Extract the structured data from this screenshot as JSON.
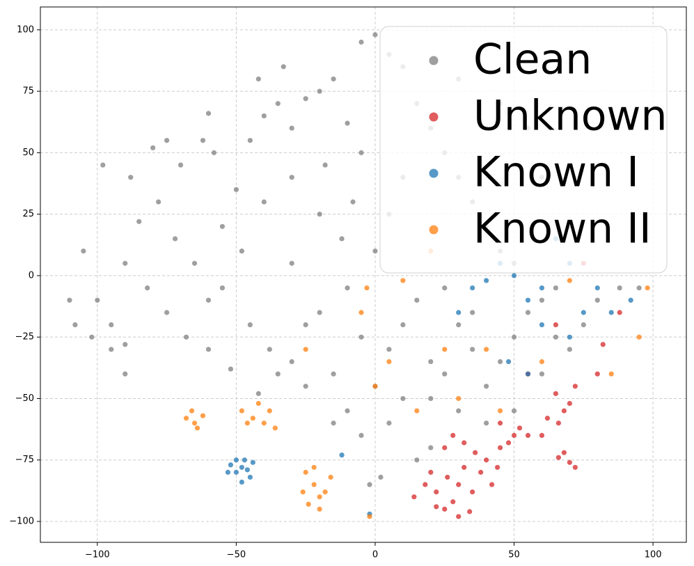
{
  "chart_data": {
    "type": "scatter",
    "xlim": [
      -120.5,
      112
    ],
    "ylim": [
      -108.5,
      109.3
    ],
    "xticks": [
      {
        "value": -100,
        "label": "−100"
      },
      {
        "value": -50,
        "label": "−50"
      },
      0,
      50,
      100
    ],
    "yticks": [
      {
        "value": -100,
        "label": "−100"
      },
      {
        "value": -75,
        "label": "−75"
      },
      {
        "value": -50,
        "label": "−50"
      },
      {
        "value": -25,
        "label": "−25"
      },
      0,
      25,
      50,
      75,
      100
    ],
    "grid": true,
    "legend": "upper right",
    "series": [
      {
        "name": "Clean",
        "color": "#7f7f7f",
        "x": [
          -105,
          -100,
          -95,
          -102,
          -90,
          -85,
          -88,
          -80,
          -75,
          -70,
          -78,
          -72,
          -65,
          -60,
          -68,
          -75,
          -82,
          -90,
          -55,
          -50,
          -45,
          -40,
          -35,
          -30,
          -25,
          -20,
          -15,
          -10,
          -5,
          -8,
          -12,
          -20,
          -30,
          -40,
          -48,
          -55,
          -45,
          -38,
          -30,
          -20,
          -10,
          -5,
          -15,
          -25,
          -35,
          -60,
          -52,
          -42,
          -10,
          -15,
          -5,
          0,
          5,
          10,
          15,
          20,
          25,
          30,
          35,
          40,
          45,
          50,
          55,
          60,
          65,
          70,
          75,
          80,
          88,
          95,
          60,
          50,
          40,
          30,
          20,
          10,
          5,
          -5,
          0,
          5,
          10,
          15,
          20,
          25,
          30,
          35,
          40,
          45,
          50,
          10,
          5,
          0,
          -2,
          2,
          15,
          20,
          -33,
          -60,
          -62,
          -90,
          -108,
          -110,
          -98,
          -95,
          30,
          45,
          55,
          60,
          70,
          65,
          25,
          35,
          -25,
          -30,
          -18,
          -58,
          -42
        ],
        "y": [
          10,
          -10,
          -20,
          -25,
          5,
          22,
          40,
          52,
          55,
          45,
          30,
          15,
          5,
          -10,
          -25,
          -15,
          -5,
          -28,
          20,
          35,
          55,
          65,
          70,
          60,
          72,
          75,
          80,
          62,
          50,
          30,
          15,
          25,
          40,
          30,
          10,
          -5,
          -20,
          -30,
          -35,
          -15,
          -5,
          -25,
          -40,
          -45,
          -40,
          -30,
          -38,
          -48,
          -55,
          -60,
          -65,
          -45,
          -30,
          -20,
          -10,
          -35,
          -40,
          -20,
          -30,
          -45,
          -35,
          -25,
          -15,
          -10,
          -5,
          -30,
          -20,
          -10,
          -5,
          -5,
          -40,
          -55,
          -60,
          -55,
          -50,
          -50,
          -60,
          95,
          98,
          90,
          85,
          70,
          60,
          50,
          40,
          30,
          20,
          10,
          5,
          40,
          25,
          10,
          -85,
          -82,
          -75,
          -70,
          85,
          66,
          55,
          -40,
          -20,
          -10,
          45,
          -30,
          80,
          70,
          60,
          40,
          20,
          -25,
          -5,
          -15,
          -20,
          5,
          45,
          50,
          80
        ]
      },
      {
        "name": "Unknown",
        "color": "#d62728",
        "x": [
          14,
          18,
          22,
          25,
          28,
          30,
          32,
          35,
          38,
          40,
          42,
          45,
          48,
          50,
          52,
          55,
          25,
          28,
          32,
          36,
          20,
          26,
          34,
          30,
          22,
          44,
          65,
          68,
          70,
          62,
          66,
          72,
          68,
          70,
          66,
          72,
          80,
          82,
          88,
          75,
          65,
          55,
          45,
          60
        ],
        "y": [
          -90,
          -85,
          -88,
          -95,
          -92,
          -85,
          -78,
          -88,
          -80,
          -75,
          -85,
          -70,
          -68,
          -65,
          -62,
          -65,
          -70,
          -65,
          -68,
          -72,
          -80,
          -82,
          -96,
          -98,
          -94,
          -78,
          -48,
          -55,
          -52,
          -58,
          -60,
          -45,
          -72,
          -76,
          -74,
          -78,
          -40,
          -28,
          -15,
          5,
          -20,
          -40,
          -60,
          -65
        ]
      },
      {
        "name": "Known I",
        "color": "#1f77b4",
        "x": [
          -52,
          -50,
          -48,
          -46,
          -44,
          -50,
          -48,
          -45,
          -53,
          -47,
          35,
          40,
          45,
          50,
          55,
          60,
          60,
          70,
          75,
          80,
          85,
          92,
          65,
          70,
          -2,
          -12,
          30,
          55,
          48
        ],
        "y": [
          -77,
          -80,
          -84,
          -79,
          -76,
          -75,
          -78,
          -82,
          -80,
          -75,
          -5,
          -2,
          5,
          0,
          -10,
          -5,
          -20,
          -25,
          -15,
          -5,
          -15,
          -10,
          15,
          5,
          -97,
          -73,
          -15,
          -40,
          -35
        ]
      },
      {
        "name": "Known II",
        "color": "#ff7f0e",
        "x": [
          -68,
          -65,
          -62,
          -66,
          -64,
          -48,
          -44,
          -40,
          -38,
          -42,
          -36,
          -46,
          -25,
          -22,
          -20,
          -24,
          -18,
          -16,
          -22,
          -26,
          -20,
          -2,
          0,
          -5,
          -3,
          10,
          20,
          25,
          30,
          40,
          45,
          60,
          70,
          85,
          95,
          98,
          15,
          5,
          -25
        ],
        "y": [
          -58,
          -60,
          -57,
          -55,
          -62,
          -55,
          -58,
          -60,
          -55,
          -52,
          -62,
          -60,
          -80,
          -85,
          -90,
          -93,
          -88,
          -82,
          -78,
          -88,
          -95,
          -98,
          -45,
          -15,
          -5,
          -2,
          10,
          -30,
          -50,
          -30,
          -55,
          -35,
          -2,
          -40,
          -25,
          -5,
          -55,
          -35,
          -30
        ]
      }
    ]
  }
}
